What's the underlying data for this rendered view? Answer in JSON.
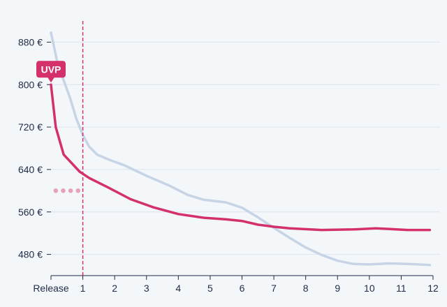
{
  "chart_data": {
    "type": "line",
    "title": "",
    "xlabel": "",
    "ylabel": "",
    "currency_suffix": " €",
    "xlim": [
      0,
      12
    ],
    "ylim": [
      440,
      920
    ],
    "y_ticks": [
      480,
      560,
      640,
      720,
      800,
      880
    ],
    "x_ticks": [
      {
        "value": 0,
        "label": "Release"
      },
      {
        "value": 1,
        "label": "1"
      },
      {
        "value": 2,
        "label": "2"
      },
      {
        "value": 3,
        "label": "3"
      },
      {
        "value": 4,
        "label": "4"
      },
      {
        "value": 5,
        "label": "5"
      },
      {
        "value": 6,
        "label": "6"
      },
      {
        "value": 7,
        "label": "7"
      },
      {
        "value": 8,
        "label": "8"
      },
      {
        "value": 9,
        "label": "9"
      },
      {
        "value": 10,
        "label": "10"
      },
      {
        "value": 11,
        "label": "11"
      },
      {
        "value": 12,
        "label": "12"
      }
    ],
    "grid": {
      "horizontal": true,
      "vertical": false
    },
    "marker_line_x": 1,
    "uvp_label": "UVP",
    "uvp_value": 800,
    "series": [
      {
        "color": "#c6d4e6",
        "points": [
          [
            0,
            898
          ],
          [
            0.2,
            842
          ],
          [
            0.4,
            808
          ],
          [
            0.6,
            775
          ],
          [
            0.8,
            735
          ],
          [
            1.0,
            705
          ],
          [
            1.2,
            683
          ],
          [
            1.45,
            668
          ],
          [
            1.8,
            659
          ],
          [
            2.3,
            648
          ],
          [
            3.0,
            628
          ],
          [
            3.7,
            610
          ],
          [
            4.3,
            592
          ],
          [
            4.8,
            583
          ],
          [
            5.5,
            578
          ],
          [
            6.0,
            568
          ],
          [
            6.5,
            550
          ],
          [
            7.0,
            530
          ],
          [
            7.5,
            511
          ],
          [
            8.0,
            493
          ],
          [
            8.5,
            479
          ],
          [
            9.0,
            468
          ],
          [
            9.5,
            462
          ],
          [
            10.0,
            461
          ],
          [
            10.6,
            463
          ],
          [
            11.2,
            462
          ],
          [
            11.9,
            460
          ]
        ]
      },
      {
        "color": "#d4306c",
        "points": [
          [
            0,
            800
          ],
          [
            0.15,
            720
          ],
          [
            0.4,
            668
          ],
          [
            0.9,
            636
          ],
          [
            1.2,
            624
          ],
          [
            1.8,
            606
          ],
          [
            2.5,
            584
          ],
          [
            3.2,
            569
          ],
          [
            4.0,
            556
          ],
          [
            4.8,
            549
          ],
          [
            5.5,
            546
          ],
          [
            6.0,
            543
          ],
          [
            6.5,
            536
          ],
          [
            7.0,
            532
          ],
          [
            7.5,
            529
          ],
          [
            8.5,
            526
          ],
          [
            9.5,
            527
          ],
          [
            10.2,
            529
          ],
          [
            10.6,
            528
          ],
          [
            11.2,
            526
          ],
          [
            11.9,
            526
          ]
        ]
      },
      {
        "color": "#e6a2bd",
        "style": "dotted",
        "points": [
          [
            0.15,
            600
          ],
          [
            0.85,
            600
          ]
        ]
      }
    ]
  }
}
